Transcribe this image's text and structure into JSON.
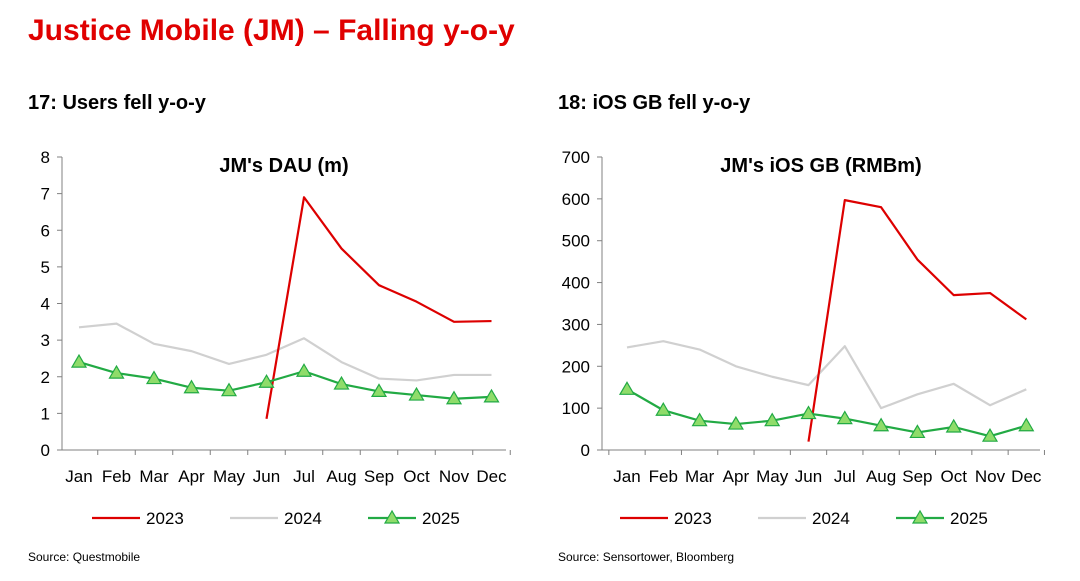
{
  "page": {
    "title": "Justice Mobile (JM) – Falling y-o-y"
  },
  "panels": [
    {
      "heading": "17: Users fell y-o-y",
      "source": "Source: Questmobile"
    },
    {
      "heading": "18: iOS GB fell y-o-y",
      "source": "Source: Sensortower, Bloomberg"
    }
  ],
  "colors": {
    "title": "#e00000",
    "s2023": "#dd0000",
    "s2024": "#d0d0d0",
    "s2025": "#22aa44",
    "marker_fill": "#8fdc6a"
  },
  "chart_data": [
    {
      "type": "line",
      "title": "JM's DAU (m)",
      "categories": [
        "Jan",
        "Feb",
        "Mar",
        "Apr",
        "May",
        "Jun",
        "Jul",
        "Aug",
        "Sep",
        "Oct",
        "Nov",
        "Dec"
      ],
      "ylim": [
        0,
        8
      ],
      "yticks": [
        "0",
        "1",
        "2",
        "3",
        "4",
        "5",
        "6",
        "7",
        "8"
      ],
      "xlabel": "",
      "ylabel": "",
      "legend_position": "bottom",
      "series": [
        {
          "name": "2023",
          "values": [
            null,
            null,
            null,
            null,
            null,
            0.85,
            6.9,
            5.5,
            4.5,
            4.05,
            3.5,
            3.52
          ]
        },
        {
          "name": "2024",
          "values": [
            3.35,
            3.45,
            2.9,
            2.7,
            2.35,
            2.6,
            3.05,
            2.4,
            1.95,
            1.9,
            2.05,
            2.05
          ]
        },
        {
          "name": "2025",
          "values": [
            2.4,
            2.1,
            1.95,
            1.7,
            1.62,
            1.85,
            2.15,
            1.8,
            1.6,
            1.5,
            1.4,
            1.45
          ]
        }
      ]
    },
    {
      "type": "line",
      "title": "JM's iOS GB (RMBm)",
      "categories": [
        "Jan",
        "Feb",
        "Mar",
        "Apr",
        "May",
        "Jun",
        "Jul",
        "Aug",
        "Sep",
        "Oct",
        "Nov",
        "Dec"
      ],
      "ylim": [
        0,
        700
      ],
      "yticks": [
        "0",
        "100",
        "200",
        "300",
        "400",
        "500",
        "600",
        "700"
      ],
      "xlabel": "",
      "ylabel": "",
      "legend_position": "bottom",
      "series": [
        {
          "name": "2023",
          "values": [
            null,
            null,
            null,
            null,
            null,
            20,
            597,
            580,
            455,
            370,
            375,
            312
          ]
        },
        {
          "name": "2024",
          "values": [
            245,
            260,
            240,
            200,
            175,
            155,
            248,
            100,
            133,
            158,
            107,
            145
          ]
        },
        {
          "name": "2025",
          "values": [
            145,
            95,
            70,
            62,
            70,
            87,
            75,
            58,
            42,
            55,
            33,
            58
          ]
        }
      ]
    }
  ]
}
